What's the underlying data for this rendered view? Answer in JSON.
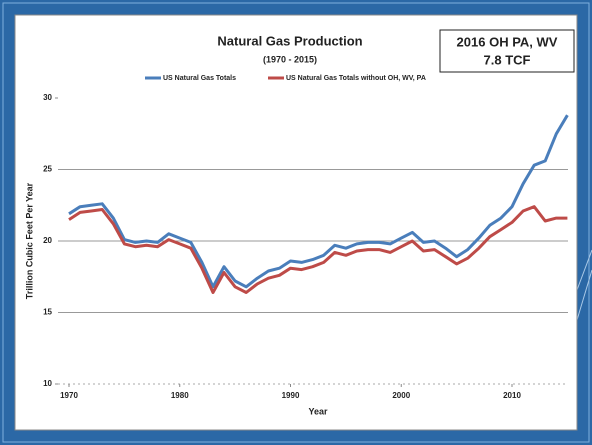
{
  "chart_data": {
    "type": "line",
    "title": "Natural Gas Production",
    "subtitle": "(1970 - 2015)",
    "annotation": [
      "2016 OH PA, WV",
      "7.8 TCF"
    ],
    "x_label": "Year",
    "y_label": "Trillion Cubic Feet Per Year",
    "x": [
      1970,
      1971,
      1972,
      1973,
      1974,
      1975,
      1976,
      1977,
      1978,
      1979,
      1980,
      1981,
      1982,
      1983,
      1984,
      1985,
      1986,
      1987,
      1988,
      1989,
      1990,
      1991,
      1992,
      1993,
      1994,
      1995,
      1996,
      1997,
      1998,
      1999,
      2000,
      2001,
      2002,
      2003,
      2004,
      2005,
      2006,
      2007,
      2008,
      2009,
      2010,
      2011,
      2012,
      2013,
      2014,
      2015
    ],
    "series": [
      {
        "name": "US Natural Gas Totals",
        "color": "#4a7ebb",
        "values": [
          21.9,
          22.4,
          22.5,
          22.6,
          21.6,
          20.1,
          19.9,
          20.0,
          19.9,
          20.5,
          20.2,
          19.9,
          18.5,
          16.8,
          18.2,
          17.2,
          16.8,
          17.4,
          17.9,
          18.1,
          18.6,
          18.5,
          18.7,
          19.0,
          19.7,
          19.5,
          19.8,
          19.9,
          19.9,
          19.8,
          20.2,
          20.6,
          19.9,
          20.0,
          19.5,
          18.9,
          19.4,
          20.2,
          21.1,
          21.6,
          22.4,
          24.0,
          25.3,
          25.6,
          27.5,
          28.8
        ]
      },
      {
        "name": "US Natural Gas Totals without OH, WV, PA",
        "color": "#be4b48",
        "values": [
          21.5,
          22.0,
          22.1,
          22.2,
          21.2,
          19.8,
          19.6,
          19.7,
          19.6,
          20.1,
          19.8,
          19.5,
          18.1,
          16.4,
          17.8,
          16.8,
          16.4,
          17.0,
          17.4,
          17.6,
          18.1,
          18.0,
          18.2,
          18.5,
          19.2,
          19.0,
          19.3,
          19.4,
          19.4,
          19.2,
          19.6,
          20.0,
          19.3,
          19.4,
          18.9,
          18.4,
          18.8,
          19.5,
          20.3,
          20.8,
          21.3,
          22.1,
          22.4,
          21.4,
          21.6,
          21.6
        ]
      }
    ],
    "xlim": [
      1969,
      2016
    ],
    "xticks": [
      1970,
      1980,
      1990,
      2000,
      2010
    ],
    "ylim": [
      10,
      30
    ],
    "yticks": [
      10,
      15,
      20,
      25,
      30
    ],
    "grid": true
  }
}
